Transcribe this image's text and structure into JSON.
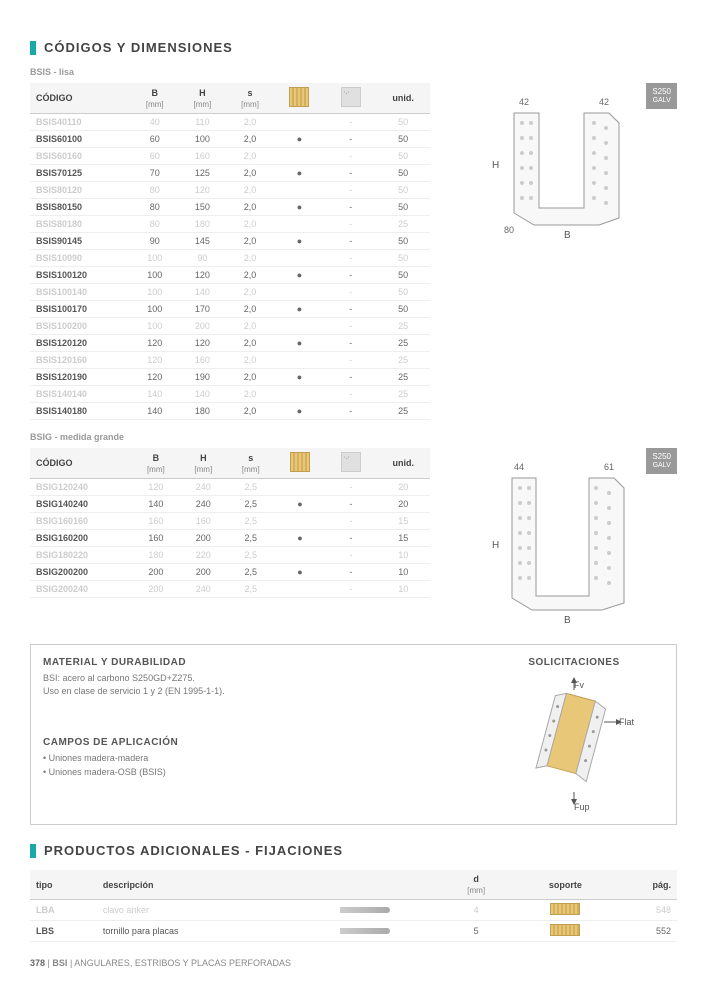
{
  "sections": {
    "codigos": {
      "title": "CÓDIGOS Y DIMENSIONES"
    },
    "productos": {
      "title": "PRODUCTOS ADICIONALES - FIJACIONES"
    }
  },
  "bsis": {
    "subtitle": "BSIS - lisa",
    "columns": {
      "codigo": "CÓDIGO",
      "b": "B",
      "h": "H",
      "s": "s",
      "unid": "unid.",
      "mm": "[mm]"
    },
    "rows": [
      {
        "codigo": "BSIS40110",
        "b": "40",
        "h": "110",
        "s": "2,0",
        "wood": "",
        "concrete": "-",
        "unid": "50",
        "faded": true
      },
      {
        "codigo": "BSIS60100",
        "b": "60",
        "h": "100",
        "s": "2,0",
        "wood": "●",
        "concrete": "-",
        "unid": "50",
        "faded": false
      },
      {
        "codigo": "BSIS60160",
        "b": "60",
        "h": "160",
        "s": "2,0",
        "wood": "",
        "concrete": "-",
        "unid": "50",
        "faded": true
      },
      {
        "codigo": "BSIS70125",
        "b": "70",
        "h": "125",
        "s": "2,0",
        "wood": "●",
        "concrete": "-",
        "unid": "50",
        "faded": false
      },
      {
        "codigo": "BSIS80120",
        "b": "80",
        "h": "120",
        "s": "2,0",
        "wood": "",
        "concrete": "-",
        "unid": "50",
        "faded": true
      },
      {
        "codigo": "BSIS80150",
        "b": "80",
        "h": "150",
        "s": "2,0",
        "wood": "●",
        "concrete": "-",
        "unid": "50",
        "faded": false
      },
      {
        "codigo": "BSIS80180",
        "b": "80",
        "h": "180",
        "s": "2,0",
        "wood": "",
        "concrete": "-",
        "unid": "25",
        "faded": true
      },
      {
        "codigo": "BSIS90145",
        "b": "90",
        "h": "145",
        "s": "2,0",
        "wood": "●",
        "concrete": "-",
        "unid": "50",
        "faded": false
      },
      {
        "codigo": "BSIS10090",
        "b": "100",
        "h": "90",
        "s": "2,0",
        "wood": "",
        "concrete": "-",
        "unid": "50",
        "faded": true
      },
      {
        "codigo": "BSIS100120",
        "b": "100",
        "h": "120",
        "s": "2,0",
        "wood": "●",
        "concrete": "-",
        "unid": "50",
        "faded": false
      },
      {
        "codigo": "BSIS100140",
        "b": "100",
        "h": "140",
        "s": "2,0",
        "wood": "",
        "concrete": "-",
        "unid": "50",
        "faded": true
      },
      {
        "codigo": "BSIS100170",
        "b": "100",
        "h": "170",
        "s": "2,0",
        "wood": "●",
        "concrete": "-",
        "unid": "50",
        "faded": false
      },
      {
        "codigo": "BSIS100200",
        "b": "100",
        "h": "200",
        "s": "2,0",
        "wood": "",
        "concrete": "-",
        "unid": "25",
        "faded": true
      },
      {
        "codigo": "BSIS120120",
        "b": "120",
        "h": "120",
        "s": "2,0",
        "wood": "●",
        "concrete": "-",
        "unid": "25",
        "faded": false
      },
      {
        "codigo": "BSIS120160",
        "b": "120",
        "h": "160",
        "s": "2,0",
        "wood": "",
        "concrete": "-",
        "unid": "25",
        "faded": true
      },
      {
        "codigo": "BSIS120190",
        "b": "120",
        "h": "190",
        "s": "2,0",
        "wood": "●",
        "concrete": "-",
        "unid": "25",
        "faded": false
      },
      {
        "codigo": "BSIS140140",
        "b": "140",
        "h": "140",
        "s": "2,0",
        "wood": "",
        "concrete": "-",
        "unid": "25",
        "faded": true
      },
      {
        "codigo": "BSIS140180",
        "b": "140",
        "h": "180",
        "s": "2,0",
        "wood": "●",
        "concrete": "-",
        "unid": "25",
        "faded": false
      }
    ],
    "diagram": {
      "labels": {
        "top_left": "42",
        "top_right": "42",
        "h": "H",
        "bottom_left": "80",
        "b": "B"
      }
    }
  },
  "bsig": {
    "subtitle": "BSIG - medida grande",
    "rows": [
      {
        "codigo": "BSIG120240",
        "b": "120",
        "h": "240",
        "s": "2,5",
        "wood": "",
        "concrete": "-",
        "unid": "20",
        "faded": true
      },
      {
        "codigo": "BSIG140240",
        "b": "140",
        "h": "240",
        "s": "2,5",
        "wood": "●",
        "concrete": "-",
        "unid": "20",
        "faded": false
      },
      {
        "codigo": "BSIG160160",
        "b": "160",
        "h": "160",
        "s": "2,5",
        "wood": "",
        "concrete": "-",
        "unid": "15",
        "faded": true
      },
      {
        "codigo": "BSIG160200",
        "b": "160",
        "h": "200",
        "s": "2,5",
        "wood": "●",
        "concrete": "-",
        "unid": "15",
        "faded": false
      },
      {
        "codigo": "BSIG180220",
        "b": "180",
        "h": "220",
        "s": "2,5",
        "wood": "",
        "concrete": "-",
        "unid": "10",
        "faded": true
      },
      {
        "codigo": "BSIG200200",
        "b": "200",
        "h": "200",
        "s": "2,5",
        "wood": "●",
        "concrete": "-",
        "unid": "10",
        "faded": false
      },
      {
        "codigo": "BSIG200240",
        "b": "200",
        "h": "240",
        "s": "2,5",
        "wood": "",
        "concrete": "-",
        "unid": "10",
        "faded": true
      }
    ],
    "diagram": {
      "labels": {
        "top_left": "44",
        "top_right": "61",
        "h": "H",
        "b": "B"
      }
    }
  },
  "badge": {
    "line1": "S250",
    "line2": "GALV"
  },
  "material": {
    "heading": "MATERIAL Y DURABILIDAD",
    "line1": "BSI: acero al carbono S250GD+Z275.",
    "line2": "Uso en clase de servicio 1 y 2 (EN 1995-1-1)."
  },
  "campos": {
    "heading": "CAMPOS DE APLICACIÓN",
    "items": [
      "Uniones madera-madera",
      "Uniones madera-OSB (BSIS)"
    ]
  },
  "solicitaciones": {
    "heading": "SOLICITACIONES",
    "labels": {
      "fv": "Fv",
      "flat": "Flat",
      "fup": "Fup"
    }
  },
  "productos": {
    "columns": {
      "tipo": "tipo",
      "descripcion": "descripción",
      "d": "d",
      "soporte": "soporte",
      "pag": "pág.",
      "mm": "[mm]"
    },
    "rows": [
      {
        "tipo": "LBA",
        "desc": "clavo anker",
        "d": "4",
        "pag": "548",
        "faded": true
      },
      {
        "tipo": "LBS",
        "desc": "tornillo para placas",
        "d": "5",
        "pag": "552",
        "faded": false
      }
    ]
  },
  "footer": {
    "page": "378",
    "sep": "|",
    "code": "BSI",
    "text": "ANGULARES, ESTRIBOS Y PLACAS PERFORADAS"
  }
}
